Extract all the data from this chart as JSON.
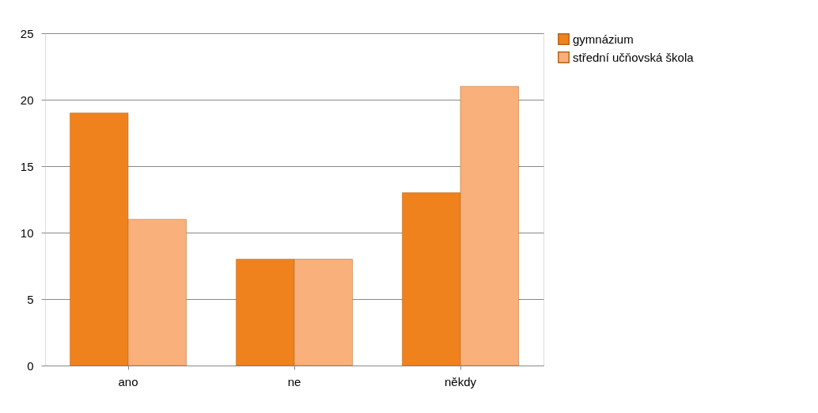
{
  "chart_data": {
    "type": "bar",
    "categories": [
      "ano",
      "ne",
      "někdy"
    ],
    "series": [
      {
        "name": "gymnázium",
        "color": "#f0821e",
        "values": [
          19,
          8,
          13
        ]
      },
      {
        "name": "střední učňovská škola",
        "color": "#f9b07a",
        "values": [
          11,
          8,
          21
        ]
      }
    ],
    "ylim": [
      0,
      25
    ],
    "yticks": [
      0,
      5,
      10,
      15,
      20,
      25
    ],
    "grid": "y",
    "legend": "right"
  }
}
